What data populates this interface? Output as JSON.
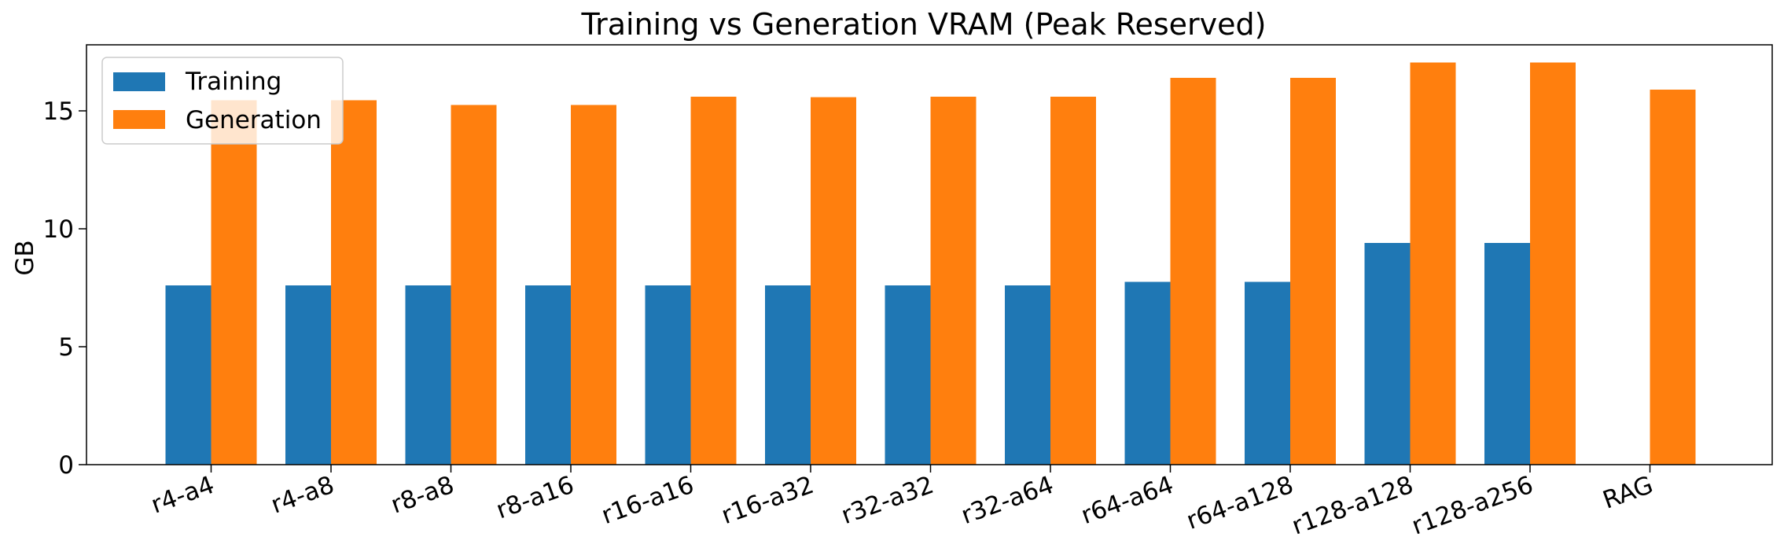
{
  "chart_data": {
    "type": "bar",
    "title": "Training vs Generation VRAM (Peak Reserved)",
    "xlabel": "",
    "ylabel": "GB",
    "ylim": [
      0,
      17.8
    ],
    "yticks": [
      0,
      5,
      10,
      15
    ],
    "grid": false,
    "legend_position": "top-left",
    "categories": [
      "r4-a4",
      "r4-a8",
      "r8-a8",
      "r8-a16",
      "r16-a16",
      "r16-a32",
      "r32-a32",
      "r32-a64",
      "r64-a64",
      "r64-a128",
      "r128-a128",
      "r128-a256",
      "RAG"
    ],
    "series": [
      {
        "name": "Training",
        "color": "#1f77b4",
        "values": [
          7.6,
          7.6,
          7.6,
          7.6,
          7.6,
          7.6,
          7.6,
          7.6,
          7.75,
          7.75,
          9.4,
          9.4,
          null
        ]
      },
      {
        "name": "Generation",
        "color": "#ff7f0e",
        "values": [
          15.45,
          15.45,
          15.25,
          15.25,
          15.6,
          15.58,
          15.6,
          15.6,
          16.4,
          16.4,
          17.05,
          17.05,
          15.9
        ]
      }
    ]
  }
}
